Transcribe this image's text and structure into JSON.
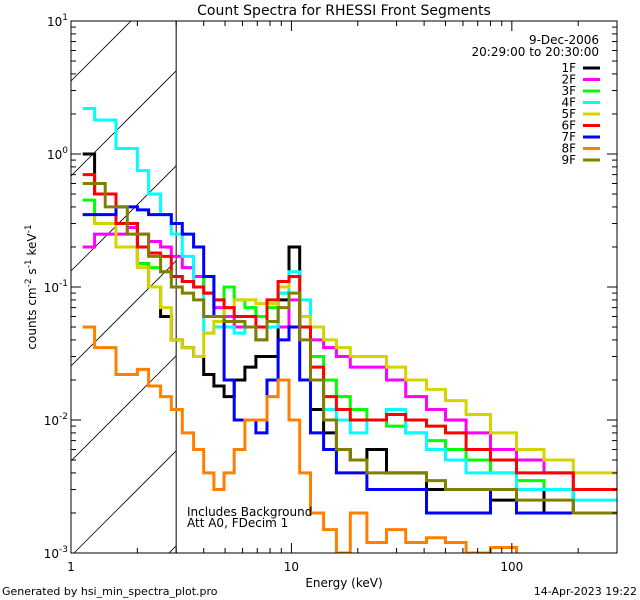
{
  "chart_data": {
    "type": "line",
    "title": "Count Spectra for RHESSI Front Segments",
    "xlabel": "Energy (keV)",
    "ylabel": {
      "base": "counts cm",
      "parts": [
        [
          "-2",
          " s"
        ],
        [
          "-1",
          " keV"
        ],
        [
          "-1",
          ""
        ]
      ]
    },
    "xscale": "log",
    "yscale": "log",
    "xlim": [
      1,
      300
    ],
    "ylim": [
      0.001,
      10
    ],
    "x_ticks": [
      {
        "value": 1,
        "label": "1"
      },
      {
        "value": 10,
        "label": "10"
      },
      {
        "value": 100,
        "label": "100"
      }
    ],
    "y_ticks": [
      {
        "value": 10,
        "base": "10",
        "exp": "1"
      },
      {
        "value": 1,
        "base": "10",
        "exp": "0"
      },
      {
        "value": 0.1,
        "base": "10",
        "exp": "-1"
      },
      {
        "value": 0.01,
        "base": "10",
        "exp": "-2"
      },
      {
        "value": 0.001,
        "base": "10",
        "exp": "-3"
      }
    ],
    "shaded_region": [
      1,
      3
    ],
    "legend_position": "top-right",
    "legend_header": [
      "9-Dec-2006",
      "20:29:00 to 20:30:00"
    ],
    "annotations": [
      "Includes Background",
      "Att A0, FDecim 1"
    ],
    "bin_edges": [
      1.13,
      1.28,
      1.43,
      1.6,
      1.8,
      2.0,
      2.25,
      2.55,
      2.85,
      3.2,
      3.6,
      4.0,
      4.45,
      4.95,
      5.5,
      6.15,
      6.9,
      7.75,
      8.7,
      9.75,
      10.9,
      12.2,
      14,
      16,
      18.5,
      22,
      27,
      33,
      41,
      50,
      62,
      80,
      105,
      140,
      190,
      300
    ],
    "series": [
      {
        "name": "1F",
        "color": "#000000",
        "values": [
          1.0,
          0.5,
          0.5,
          0.3,
          0.3,
          0.15,
          0.1,
          0.06,
          0.04,
          0.035,
          0.03,
          0.022,
          0.018,
          0.015,
          0.02,
          0.025,
          0.03,
          0.03,
          0.08,
          0.2,
          0.05,
          0.012,
          0.008,
          0.006,
          0.005,
          0.006,
          0.004,
          0.004,
          0.003,
          0.003,
          0.003,
          0.0025,
          0.002,
          0.003,
          0.002
        ]
      },
      {
        "name": "2F",
        "color": "#ff00ff",
        "values": [
          0.2,
          0.25,
          0.25,
          0.25,
          0.28,
          0.25,
          0.22,
          0.2,
          0.17,
          0.14,
          0.12,
          0.09,
          0.07,
          0.06,
          0.05,
          0.05,
          0.04,
          0.05,
          0.05,
          0.08,
          0.06,
          0.04,
          0.035,
          0.03,
          0.025,
          0.025,
          0.02,
          0.015,
          0.012,
          0.01,
          0.008,
          0.006,
          0.005,
          0.004,
          0.003
        ]
      },
      {
        "name": "3F",
        "color": "#00ff00",
        "values": [
          0.45,
          0.3,
          0.3,
          0.2,
          0.2,
          0.15,
          0.14,
          0.13,
          0.12,
          0.11,
          0.1,
          0.12,
          0.08,
          0.1,
          0.08,
          0.07,
          0.06,
          0.07,
          0.09,
          0.12,
          0.06,
          0.03,
          0.02,
          0.015,
          0.012,
          0.01,
          0.009,
          0.008,
          0.007,
          0.006,
          0.005,
          0.004,
          0.0035,
          0.003,
          0.003
        ]
      },
      {
        "name": "4F",
        "color": "#00ffff",
        "values": [
          2.2,
          1.8,
          1.8,
          1.1,
          1.1,
          0.75,
          0.5,
          0.35,
          0.25,
          0.17,
          0.1,
          0.045,
          0.05,
          0.05,
          0.045,
          0.05,
          0.04,
          0.05,
          0.09,
          0.13,
          0.08,
          0.02,
          0.012,
          0.01,
          0.008,
          0.01,
          0.012,
          0.008,
          0.006,
          0.005,
          0.004,
          0.004,
          0.003,
          0.003,
          0.0025
        ]
      },
      {
        "name": "5F",
        "color": "#d4d400",
        "values": [
          0.35,
          0.3,
          0.3,
          0.2,
          0.2,
          0.14,
          0.1,
          0.07,
          0.04,
          0.035,
          0.03,
          0.045,
          0.055,
          0.07,
          0.08,
          0.08,
          0.075,
          0.075,
          0.1,
          0.12,
          0.06,
          0.05,
          0.04,
          0.035,
          0.03,
          0.03,
          0.025,
          0.02,
          0.017,
          0.014,
          0.011,
          0.008,
          0.006,
          0.005,
          0.004
        ]
      },
      {
        "name": "6F",
        "color": "#ff0000",
        "values": [
          0.7,
          0.5,
          0.5,
          0.3,
          0.3,
          0.2,
          0.18,
          0.17,
          0.12,
          0.11,
          0.1,
          0.09,
          0.08,
          0.07,
          0.06,
          0.06,
          0.05,
          0.08,
          0.11,
          0.12,
          0.05,
          0.025,
          0.015,
          0.012,
          0.01,
          0.01,
          0.011,
          0.01,
          0.009,
          0.008,
          0.006,
          0.005,
          0.004,
          0.004,
          0.003
        ]
      },
      {
        "name": "7F",
        "color": "#0000ff",
        "values": [
          0.35,
          0.35,
          0.35,
          0.4,
          0.4,
          0.38,
          0.35,
          0.35,
          0.3,
          0.25,
          0.2,
          0.12,
          0.06,
          0.02,
          0.01,
          0.01,
          0.008,
          0.02,
          0.04,
          0.05,
          0.02,
          0.008,
          0.006,
          0.004,
          0.004,
          0.003,
          0.003,
          0.003,
          0.002,
          0.002,
          0.002,
          0.003,
          0.002,
          0.002,
          0.002
        ]
      },
      {
        "name": "8F",
        "color": "#ff8000",
        "values": [
          0.05,
          0.035,
          0.035,
          0.022,
          0.022,
          0.024,
          0.018,
          0.015,
          0.012,
          0.008,
          0.006,
          0.004,
          0.003,
          0.004,
          0.006,
          0.01,
          0.01,
          0.015,
          0.02,
          0.01,
          0.004,
          0.002,
          0.0015,
          0.001,
          0.002,
          0.0012,
          0.0015,
          0.0012,
          0.0013,
          0.0012,
          0.001,
          0.0011,
          0.0009,
          0.0008,
          0.0008
        ]
      },
      {
        "name": "9F",
        "color": "#808000",
        "values": [
          0.6,
          0.6,
          0.4,
          0.4,
          0.25,
          0.25,
          0.17,
          0.13,
          0.1,
          0.09,
          0.08,
          0.06,
          0.06,
          0.055,
          0.055,
          0.05,
          0.04,
          0.055,
          0.07,
          0.09,
          0.04,
          0.02,
          0.01,
          0.006,
          0.005,
          0.004,
          0.004,
          0.004,
          0.0035,
          0.003,
          0.003,
          0.003,
          0.0025,
          0.0025,
          0.002
        ]
      }
    ]
  },
  "footer": {
    "generated_by": "Generated by hsi_min_spectra_plot.pro",
    "timestamp": "14-Apr-2023 19:22"
  }
}
